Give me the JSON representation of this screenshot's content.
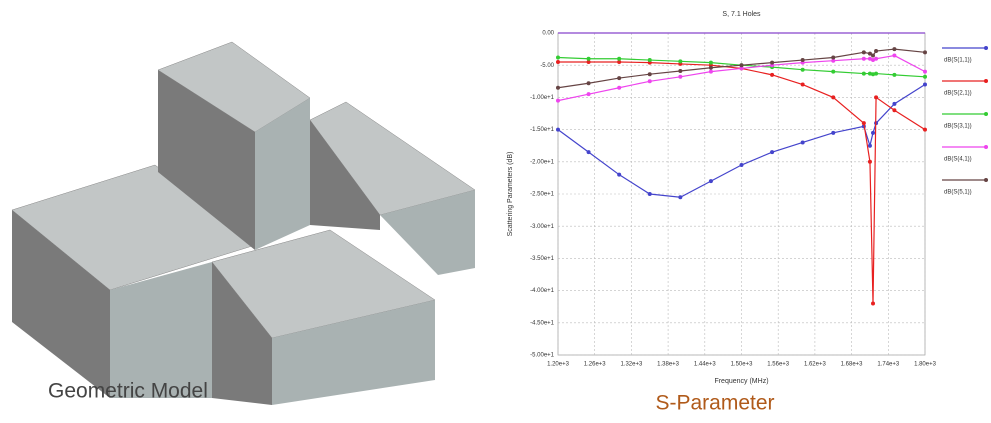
{
  "model": {
    "caption": "Geometric Model"
  },
  "caption": "S-Parameter",
  "chart_data": {
    "type": "line",
    "title": "S, 7.1 Holes",
    "x_label": "Frequency (MHz)",
    "y_label": "Scattering Parameters (dB)",
    "x": [
      1200,
      1250,
      1300,
      1350,
      1400,
      1450,
      1500,
      1550,
      1600,
      1650,
      1700,
      1710,
      1715,
      1720,
      1750,
      1800
    ],
    "series": [
      {
        "name": "dB(S(1,1))",
        "color": "#4444cc",
        "values": [
          -15,
          -18.5,
          -22,
          -25,
          -25.5,
          -23,
          -20.5,
          -18.5,
          -17,
          -15.5,
          -14.5,
          -17.5,
          -15.5,
          -14,
          -11,
          -8
        ]
      },
      {
        "name": "dB(S(2,1))",
        "color": "#e82020",
        "values": [
          -4.5,
          -4.5,
          -4.5,
          -4.6,
          -4.8,
          -5,
          -5.5,
          -6.5,
          -8,
          -10,
          -14,
          -20,
          -42,
          -10,
          -12,
          -15
        ]
      },
      {
        "name": "dB(S(3,1))",
        "color": "#33cc33",
        "values": [
          -3.8,
          -4,
          -4,
          -4.2,
          -4.4,
          -4.6,
          -5,
          -5.3,
          -5.7,
          -6,
          -6.3,
          -6.3,
          -6.4,
          -6.3,
          -6.5,
          -6.8
        ]
      },
      {
        "name": "dB(S(4,1))",
        "color": "#ee44ee",
        "values": [
          -10.5,
          -9.5,
          -8.5,
          -7.5,
          -6.8,
          -6,
          -5.5,
          -5,
          -4.6,
          -4.3,
          -4,
          -4,
          -4.2,
          -4,
          -3.5,
          -6
        ]
      },
      {
        "name": "dB(S(5,1))",
        "color": "#664444",
        "values": [
          -8.5,
          -7.8,
          -7,
          -6.4,
          -5.9,
          -5.4,
          -5,
          -4.6,
          -4.2,
          -3.8,
          -3,
          -3.2,
          -3.5,
          -2.8,
          -2.5,
          -3
        ]
      }
    ],
    "xlim": [
      1200,
      1800
    ],
    "ylim": [
      -50,
      0
    ],
    "xticks": [
      {
        "value": 1200,
        "label": "1.20e+3"
      },
      {
        "value": 1260,
        "label": "1.26e+3"
      },
      {
        "value": 1320,
        "label": "1.32e+3"
      },
      {
        "value": 1380,
        "label": "1.38e+3"
      },
      {
        "value": 1440,
        "label": "1.44e+3"
      },
      {
        "value": 1500,
        "label": "1.50e+3"
      },
      {
        "value": 1560,
        "label": "1.56e+3"
      },
      {
        "value": 1620,
        "label": "1.62e+3"
      },
      {
        "value": 1680,
        "label": "1.68e+3"
      },
      {
        "value": 1740,
        "label": "1.74e+3"
      },
      {
        "value": 1800,
        "label": "1.80e+3"
      }
    ],
    "yticks": [
      {
        "value": 0,
        "label": "0.00"
      },
      {
        "value": -5,
        "label": "-5.00"
      },
      {
        "value": -10,
        "label": "-1.00e+1"
      },
      {
        "value": -15,
        "label": "-1.50e+1"
      },
      {
        "value": -20,
        "label": "-2.00e+1"
      },
      {
        "value": -25,
        "label": "-2.50e+1"
      },
      {
        "value": -30,
        "label": "-3.00e+1"
      },
      {
        "value": -35,
        "label": "-3.50e+1"
      },
      {
        "value": -40,
        "label": "-4.00e+1"
      },
      {
        "value": -45,
        "label": "-4.50e+1"
      },
      {
        "value": -50,
        "label": "-5.00e+1"
      }
    ],
    "grid": true,
    "legend": "right"
  }
}
